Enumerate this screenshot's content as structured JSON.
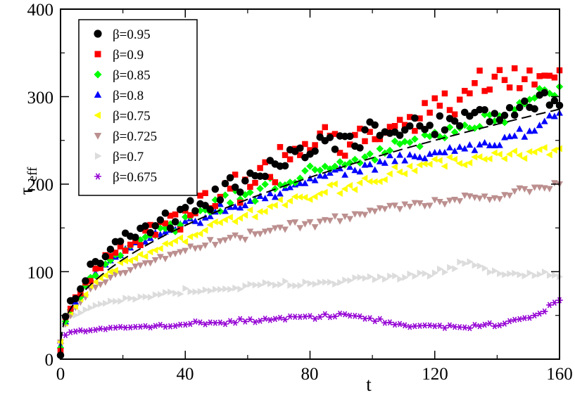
{
  "chart_data": {
    "type": "scatter",
    "title": "",
    "xlabel": "t",
    "ylabel_main": "τ",
    "ylabel_sub": "eff",
    "xlim": [
      0,
      160
    ],
    "ylim": [
      0,
      400
    ],
    "x_ticks": [
      0,
      40,
      80,
      120,
      160
    ],
    "x_tick_labels": [
      "0",
      "40",
      "80",
      "120",
      "160"
    ],
    "y_ticks": [
      0,
      100,
      200,
      300,
      400
    ],
    "y_tick_labels": [
      "0",
      "100",
      "200",
      "300",
      "400"
    ],
    "grid": false,
    "legend_position": "top-left",
    "fit_curve": {
      "style": "dashed",
      "color": "#000000",
      "form": "a + b*sqrt(t)",
      "a": 20,
      "b": 21
    },
    "series": [
      {
        "name": "β=0.95",
        "color": "#000000",
        "marker": "circle",
        "noise": 12,
        "step": 1.6,
        "knots": [
          [
            0,
            8
          ],
          [
            2,
            55
          ],
          [
            10,
            105
          ],
          [
            20,
            135
          ],
          [
            30,
            150
          ],
          [
            40,
            170
          ],
          [
            50,
            185
          ],
          [
            60,
            210
          ],
          [
            70,
            225
          ],
          [
            80,
            240
          ],
          [
            90,
            250
          ],
          [
            100,
            255
          ],
          [
            110,
            265
          ],
          [
            120,
            270
          ],
          [
            130,
            275
          ],
          [
            140,
            280
          ],
          [
            150,
            290
          ],
          [
            160,
            300
          ]
        ]
      },
      {
        "name": "β=0.9",
        "color": "#ff0000",
        "marker": "square",
        "noise": 15,
        "step": 1.6,
        "knots": [
          [
            0,
            10
          ],
          [
            2,
            52
          ],
          [
            10,
            100
          ],
          [
            20,
            130
          ],
          [
            30,
            148
          ],
          [
            40,
            165
          ],
          [
            50,
            185
          ],
          [
            60,
            205
          ],
          [
            70,
            220
          ],
          [
            80,
            250
          ],
          [
            90,
            255
          ],
          [
            100,
            250
          ],
          [
            110,
            275
          ],
          [
            120,
            290
          ],
          [
            130,
            300
          ],
          [
            140,
            320
          ],
          [
            150,
            325
          ],
          [
            160,
            330
          ]
        ]
      },
      {
        "name": "β=0.85",
        "color": "#00ff00",
        "marker": "diamond",
        "noise": 8,
        "step": 1.6,
        "knots": [
          [
            0,
            12
          ],
          [
            2,
            50
          ],
          [
            10,
            95
          ],
          [
            20,
            125
          ],
          [
            30,
            145
          ],
          [
            40,
            160
          ],
          [
            50,
            175
          ],
          [
            60,
            190
          ],
          [
            70,
            200
          ],
          [
            80,
            215
          ],
          [
            90,
            225
          ],
          [
            100,
            230
          ],
          [
            110,
            245
          ],
          [
            120,
            255
          ],
          [
            130,
            265
          ],
          [
            140,
            275
          ],
          [
            150,
            290
          ],
          [
            160,
            310
          ]
        ]
      },
      {
        "name": "β=0.8",
        "color": "#0000ff",
        "marker": "triangle-up",
        "noise": 5,
        "step": 1.6,
        "knots": [
          [
            0,
            14
          ],
          [
            2,
            50
          ],
          [
            10,
            95
          ],
          [
            20,
            125
          ],
          [
            30,
            140
          ],
          [
            40,
            155
          ],
          [
            50,
            168
          ],
          [
            60,
            180
          ],
          [
            70,
            192
          ],
          [
            80,
            205
          ],
          [
            90,
            215
          ],
          [
            100,
            222
          ],
          [
            110,
            230
          ],
          [
            120,
            235
          ],
          [
            130,
            240
          ],
          [
            140,
            248
          ],
          [
            150,
            260
          ],
          [
            160,
            280
          ]
        ]
      },
      {
        "name": "β=0.75",
        "color": "#ffff00",
        "marker": "triangle-left",
        "noise": 5,
        "step": 1.6,
        "knots": [
          [
            0,
            18
          ],
          [
            2,
            48
          ],
          [
            10,
            85
          ],
          [
            20,
            110
          ],
          [
            30,
            125
          ],
          [
            40,
            140
          ],
          [
            50,
            152
          ],
          [
            60,
            165
          ],
          [
            70,
            175
          ],
          [
            80,
            185
          ],
          [
            90,
            195
          ],
          [
            100,
            205
          ],
          [
            110,
            215
          ],
          [
            120,
            225
          ],
          [
            130,
            225
          ],
          [
            140,
            230
          ],
          [
            150,
            235
          ],
          [
            160,
            240
          ]
        ]
      },
      {
        "name": "β=0.725",
        "color": "#bc8f8f",
        "marker": "triangle-down",
        "noise": 4,
        "step": 1.6,
        "knots": [
          [
            0,
            20
          ],
          [
            2,
            45
          ],
          [
            10,
            80
          ],
          [
            20,
            100
          ],
          [
            30,
            115
          ],
          [
            40,
            125
          ],
          [
            50,
            135
          ],
          [
            60,
            142
          ],
          [
            70,
            150
          ],
          [
            80,
            155
          ],
          [
            90,
            160
          ],
          [
            100,
            170
          ],
          [
            110,
            175
          ],
          [
            120,
            180
          ],
          [
            130,
            185
          ],
          [
            140,
            185
          ],
          [
            150,
            195
          ],
          [
            160,
            200
          ]
        ]
      },
      {
        "name": "β=0.7",
        "color": "#dcdcdc",
        "marker": "triangle-right",
        "noise": 3,
        "step": 1.6,
        "knots": [
          [
            0,
            18
          ],
          [
            2,
            45
          ],
          [
            10,
            60
          ],
          [
            20,
            68
          ],
          [
            30,
            73
          ],
          [
            40,
            78
          ],
          [
            50,
            80
          ],
          [
            60,
            83
          ],
          [
            70,
            85
          ],
          [
            80,
            88
          ],
          [
            90,
            90
          ],
          [
            100,
            92
          ],
          [
            110,
            95
          ],
          [
            120,
            98
          ],
          [
            130,
            110
          ],
          [
            140,
            98
          ],
          [
            150,
            95
          ],
          [
            160,
            95
          ]
        ]
      },
      {
        "name": "β=0.675",
        "color": "#9400d3",
        "marker": "star",
        "noise": 2,
        "step": 1.6,
        "knots": [
          [
            0,
            18
          ],
          [
            1,
            28
          ],
          [
            5,
            32
          ],
          [
            20,
            36
          ],
          [
            40,
            40
          ],
          [
            60,
            44
          ],
          [
            80,
            48
          ],
          [
            90,
            52
          ],
          [
            100,
            45
          ],
          [
            110,
            38
          ],
          [
            120,
            38
          ],
          [
            130,
            37
          ],
          [
            140,
            40
          ],
          [
            150,
            48
          ],
          [
            155,
            55
          ],
          [
            160,
            70
          ]
        ]
      }
    ]
  }
}
